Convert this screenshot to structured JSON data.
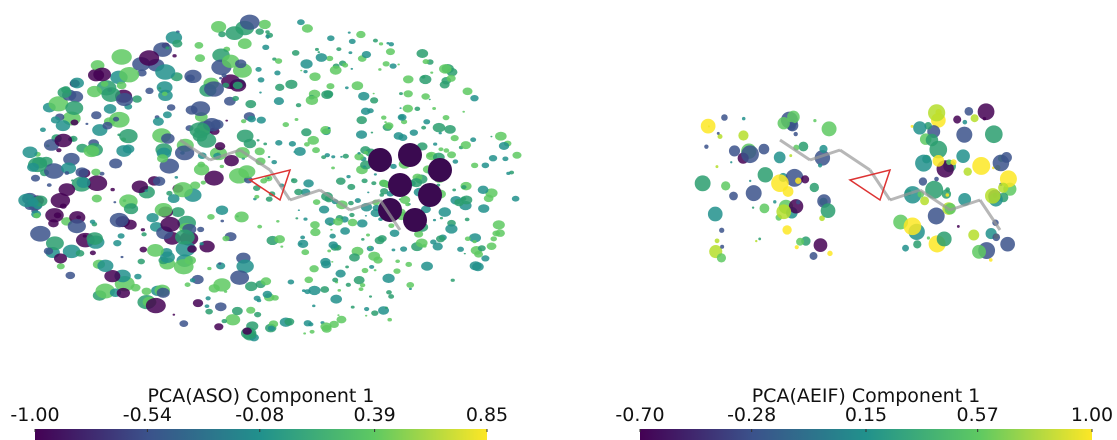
{
  "panels": [
    {
      "colorbar": {
        "title": "PCA(ASO) Component 1",
        "lim": [
          -1.0,
          0.85
        ],
        "ticks": [
          {
            "value": -1.0,
            "label": "-1.00"
          },
          {
            "value": -0.54,
            "label": "-0.54"
          },
          {
            "value": -0.08,
            "label": "-0.08"
          },
          {
            "value": 0.39,
            "label": "0.39"
          },
          {
            "value": 0.85,
            "label": "0.85"
          }
        ]
      }
    },
    {
      "colorbar": {
        "title": "PCA(AEIF) Component 1",
        "lim": [
          -0.7,
          1.0
        ],
        "ticks": [
          {
            "value": -0.7,
            "label": "-0.70"
          },
          {
            "value": -0.28,
            "label": "-0.28"
          },
          {
            "value": 0.15,
            "label": "0.15"
          },
          {
            "value": 0.57,
            "label": "0.57"
          },
          {
            "value": 1.0,
            "label": "1.00"
          }
        ]
      }
    }
  ]
}
